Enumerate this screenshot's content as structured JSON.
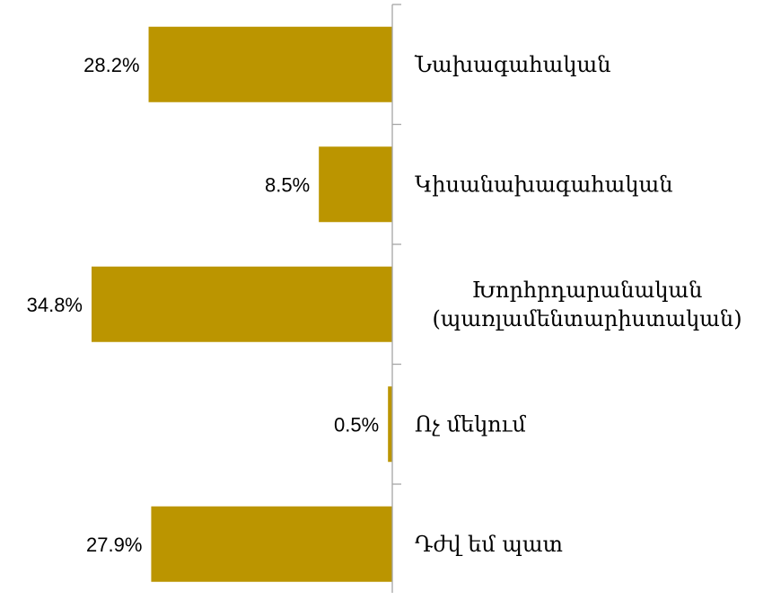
{
  "chart_data": {
    "type": "bar",
    "orientation": "horizontal",
    "bar_direction": "leftward",
    "categories": [
      [
        "Նախագահական"
      ],
      [
        "Կիսանախագահական"
      ],
      [
        "Խորհրդարանական",
        "(պառլամենտարիստական)"
      ],
      [
        "Ոչ մեկում"
      ],
      [
        "Դժվ եմ պատ"
      ]
    ],
    "values": [
      28.2,
      8.5,
      34.8,
      0.5,
      27.9
    ],
    "value_labels": [
      "28.2%",
      "8.5%",
      "34.8%",
      "0.5%",
      "27.9%"
    ],
    "unit": "%",
    "xlim": [
      0,
      35
    ],
    "title": "",
    "xlabel": "",
    "ylabel": "",
    "grid": false,
    "legend": "none",
    "colors": {
      "bar": "#BB9500",
      "axis": "#A6A6A6",
      "text": "#000000"
    }
  }
}
